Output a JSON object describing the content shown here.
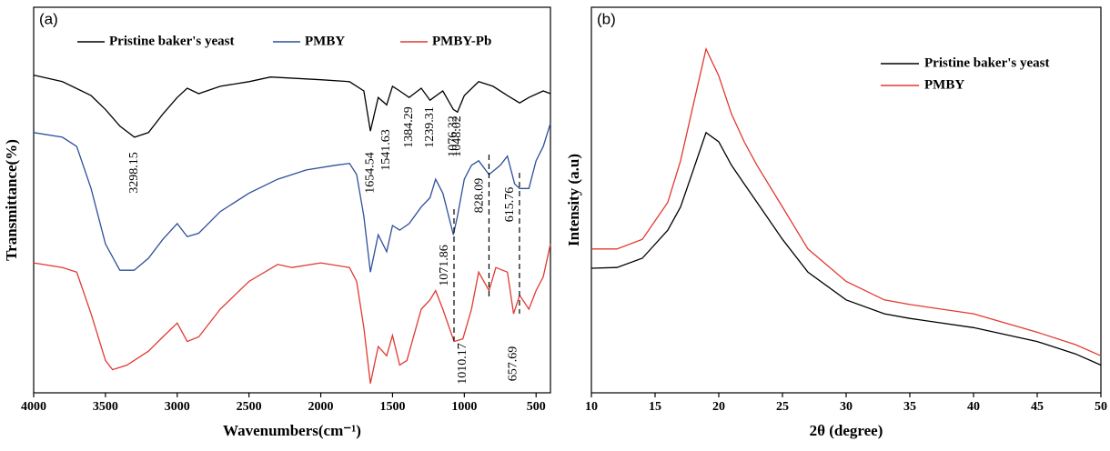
{
  "chart_data": [
    {
      "type": "line",
      "panel": "(a)",
      "x_label": "Wavenumbers(cm⁻¹)",
      "y_label": "Transmittance(%)",
      "xlim": [
        4000,
        400
      ],
      "xticks": [
        4000,
        3500,
        3000,
        2500,
        2000,
        1500,
        1000,
        500
      ],
      "ylim": [
        0,
        100
      ],
      "legend": "top",
      "series": [
        {
          "name": "Pristine baker's yeast",
          "color": "#000000",
          "x": [
            4000,
            3800,
            3600,
            3500,
            3400,
            3298,
            3200,
            3100,
            3000,
            2930,
            2850,
            2700,
            2500,
            2350,
            2000,
            1800,
            1700,
            1654,
            1600,
            1541,
            1500,
            1450,
            1384,
            1300,
            1239,
            1150,
            1076,
            1048,
            1000,
            900,
            800,
            700,
            615,
            550,
            450,
            400
          ],
          "values": [
            82.4,
            80.7,
            77.1,
            73.5,
            69.2,
            66.3,
            67.5,
            72.3,
            76.6,
            79.0,
            77.6,
            79.5,
            80.7,
            81.9,
            81.2,
            80.7,
            78.3,
            67.9,
            76.6,
            74.7,
            79.5,
            78.3,
            76.6,
            79.0,
            75.9,
            78.3,
            73.5,
            72.8,
            77.1,
            80.7,
            79.5,
            77.1,
            75.2,
            76.6,
            78.3,
            77.6
          ]
        },
        {
          "name": "PMBY",
          "color": "#2e4f9a",
          "x": [
            4000,
            3800,
            3700,
            3600,
            3500,
            3400,
            3300,
            3200,
            3100,
            3000,
            2930,
            2850,
            2700,
            2500,
            2300,
            2100,
            1900,
            1800,
            1750,
            1700,
            1654,
            1600,
            1541,
            1500,
            1450,
            1384,
            1300,
            1239,
            1200,
            1150,
            1076,
            1048,
            1000,
            950,
            900,
            828,
            750,
            700,
            650,
            615,
            550,
            500,
            450,
            400
          ],
          "values": [
            67.5,
            66.3,
            63.9,
            53.0,
            38.6,
            31.8,
            31.8,
            34.9,
            39.8,
            43.9,
            40.5,
            41.4,
            47.0,
            51.8,
            55.4,
            57.8,
            59.0,
            59.5,
            56.6,
            45.8,
            31.3,
            41.0,
            36.6,
            43.4,
            42.2,
            43.9,
            48.2,
            50.6,
            55.4,
            51.8,
            41.0,
            45.8,
            55.4,
            59.0,
            60.2,
            56.6,
            59.0,
            61.4,
            54.2,
            53.0,
            53.0,
            60.2,
            63.9,
            69.9
          ]
        },
        {
          "name": "PMBY-Pb",
          "color": "#e03a32",
          "x": [
            4000,
            3800,
            3700,
            3600,
            3500,
            3450,
            3350,
            3200,
            3100,
            3000,
            2930,
            2850,
            2700,
            2500,
            2300,
            2200,
            2000,
            1800,
            1750,
            1700,
            1654,
            1600,
            1541,
            1500,
            1450,
            1400,
            1300,
            1239,
            1200,
            1150,
            1071,
            1010,
            950,
            900,
            828,
            780,
            700,
            657,
            615,
            550,
            500,
            450,
            400
          ],
          "values": [
            33.7,
            32.5,
            31.3,
            20.5,
            8.4,
            6.0,
            7.2,
            10.8,
            14.5,
            18.1,
            13.3,
            14.5,
            21.7,
            28.9,
            33.3,
            32.5,
            33.7,
            32.5,
            28.9,
            16.9,
            2.4,
            12.0,
            9.6,
            14.9,
            7.2,
            8.4,
            21.7,
            24.1,
            26.5,
            21.7,
            13.3,
            14.0,
            21.7,
            31.3,
            26.5,
            32.5,
            31.3,
            20.5,
            25.3,
            21.7,
            26.5,
            30.1,
            38.6
          ]
        }
      ],
      "annotations": [
        "3298.15",
        "1654.54",
        "1541.63",
        "1384.29",
        "1239.31",
        "1076.32",
        "1048.02",
        "1071.86",
        "828.09",
        "615.76",
        "1010.17",
        "657.69"
      ]
    },
    {
      "type": "line",
      "panel": "(b)",
      "x_label": "2θ (degree)",
      "y_label": "Intensity (a.u)",
      "xlim": [
        10,
        50
      ],
      "xticks": [
        10,
        15,
        20,
        25,
        30,
        35,
        40,
        45,
        50
      ],
      "ylim": [
        0,
        100
      ],
      "legend": "top-right",
      "series": [
        {
          "name": "Pristine baker's yeast",
          "color": "#000000",
          "x": [
            10,
            12,
            14,
            16,
            17,
            18,
            19,
            20,
            21,
            22,
            23,
            25,
            27,
            30,
            33,
            35,
            40,
            45,
            48,
            50
          ],
          "values": [
            32.3,
            32.5,
            34.9,
            42.2,
            48.2,
            57.8,
            67.5,
            65.1,
            59.0,
            54.2,
            49.4,
            39.8,
            31.3,
            24.1,
            20.5,
            19.3,
            16.9,
            13.3,
            10.1,
            7.2
          ]
        },
        {
          "name": "PMBY",
          "color": "#e03a32",
          "x": [
            10,
            12,
            14,
            16,
            17,
            18,
            19,
            20,
            21,
            22,
            23,
            25,
            27,
            30,
            33,
            35,
            40,
            45,
            48,
            50
          ],
          "values": [
            37.3,
            37.3,
            39.8,
            49.4,
            60.2,
            74.7,
            89.2,
            82.2,
            72.3,
            65.1,
            59.0,
            48.2,
            37.3,
            28.9,
            24.1,
            22.9,
            20.5,
            15.7,
            12.5,
            9.6
          ]
        }
      ]
    }
  ]
}
